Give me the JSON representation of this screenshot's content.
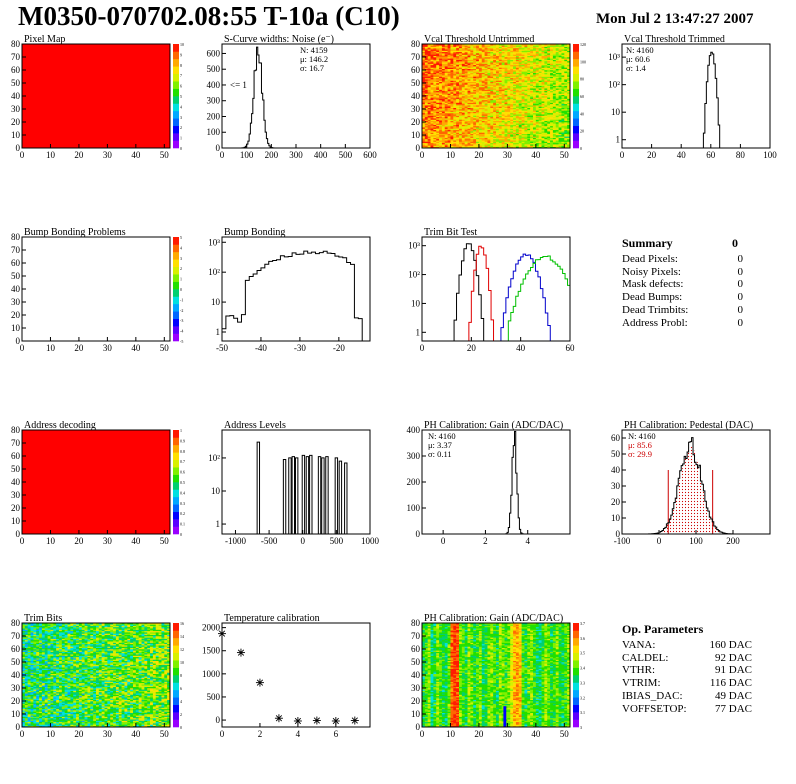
{
  "header": {
    "title": "M0350-070702.08:55 T-10a (C10)",
    "date": "Mon Jul  2 13:47:27 2007"
  },
  "colors": {
    "hist": "#000000",
    "trim_red": "#e00000",
    "trim_blue": "#0000cc",
    "trim_green": "#00c000",
    "ped_red": "#cc0000",
    "map_red": "#ff0000"
  },
  "chart_data": [
    {
      "id": "pixel_map",
      "type": "heatmap",
      "title": "Pixel Map",
      "pattern": "uniform_red",
      "xlim": [
        0,
        52
      ],
      "ylim": [
        0,
        80
      ],
      "xticks": [
        "0",
        "10",
        "20",
        "30",
        "40",
        "50"
      ],
      "yticks": [
        "0",
        "10",
        "20",
        "30",
        "40",
        "50",
        "60",
        "70",
        "80"
      ],
      "zticks": [
        "0",
        "1",
        "2",
        "3",
        "4",
        "5",
        "6",
        "7",
        "8",
        "9",
        "10"
      ]
    },
    {
      "id": "scurve",
      "type": "bar",
      "title": "S-Curve widths: Noise (e⁻)",
      "xlim": [
        0,
        600
      ],
      "ylim": [
        0,
        660
      ],
      "xticks": [
        "0",
        "100",
        "200",
        "300",
        "400",
        "500",
        "600"
      ],
      "yticks": [
        "0",
        "100",
        "200",
        "300",
        "400",
        "500",
        "600"
      ],
      "stats": [
        "N: 4159",
        "μ: 146.2",
        "σ: 16.7"
      ],
      "annotation": "<= 1",
      "peaks": [
        {
          "mean": 146,
          "sigma": 17,
          "height": 630
        }
      ]
    },
    {
      "id": "vcal_untrimmed",
      "type": "heatmap",
      "title": "Vcal Threshold Untrimmed",
      "pattern": "gradient_hot",
      "xlim": [
        0,
        52
      ],
      "ylim": [
        0,
        80
      ],
      "xticks": [
        "0",
        "10",
        "20",
        "30",
        "40",
        "50"
      ],
      "yticks": [
        "0",
        "10",
        "20",
        "30",
        "40",
        "50",
        "60",
        "70",
        "80"
      ],
      "zticks": [
        "0",
        "20",
        "40",
        "60",
        "80",
        "100",
        "120"
      ]
    },
    {
      "id": "vcal_trimmed",
      "type": "bar",
      "title": "Vcal Threshold Trimmed",
      "log": true,
      "xlim": [
        0,
        100
      ],
      "ylim": [
        0.5,
        3000
      ],
      "xticks": [
        "0",
        "20",
        "40",
        "60",
        "80",
        "100"
      ],
      "ytickvals": [
        1,
        10,
        100,
        1000
      ],
      "ylabels": [
        "1",
        "10",
        "10²",
        "10³"
      ],
      "stats": [
        "N: 4160",
        "μ: 60.6",
        "σ: 1.4"
      ],
      "peaks": [
        {
          "mean": 60.6,
          "sigma": 1.4,
          "height": 1500
        }
      ]
    },
    {
      "id": "bump_problems",
      "type": "heatmap",
      "title": "Bump Bonding Problems",
      "pattern": "empty",
      "xlim": [
        0,
        52
      ],
      "ylim": [
        0,
        80
      ],
      "xticks": [
        "0",
        "10",
        "20",
        "30",
        "40",
        "50"
      ],
      "yticks": [
        "0",
        "10",
        "20",
        "30",
        "40",
        "50",
        "60",
        "70",
        "80"
      ],
      "zticks": [
        "-5",
        "-4",
        "-3",
        "-2",
        "-1",
        "0",
        "1",
        "2",
        "3",
        "4",
        "5"
      ]
    },
    {
      "id": "bump_bonding",
      "type": "bar",
      "title": "Bump Bonding",
      "log": true,
      "xlim": [
        -50,
        -12
      ],
      "ylim": [
        0.5,
        1500
      ],
      "xticks": [
        "-50",
        "-40",
        "-30",
        "-20"
      ],
      "ytickvals": [
        1,
        10,
        100,
        1000
      ],
      "ylabels": [
        "1",
        "10",
        "10²",
        "10³"
      ],
      "peaks": [
        {
          "mean": -27,
          "sigma": 8,
          "height": 480
        }
      ]
    },
    {
      "id": "trim_bit_test",
      "type": "bar",
      "title": "Trim Bit Test",
      "log": true,
      "xlim": [
        0,
        60
      ],
      "ylim": [
        0.5,
        2000
      ],
      "xticks": [
        "0",
        "20",
        "40",
        "60"
      ],
      "ytickvals": [
        1,
        10,
        100,
        1000
      ],
      "ylabels": [
        "1",
        "10",
        "10²",
        "10³"
      ],
      "series": [
        {
          "color": "#000000",
          "peaks": [
            {
              "mean": 19,
              "sigma": 1.6,
              "height": 1100
            }
          ]
        },
        {
          "color": "#e00000",
          "peaks": [
            {
              "mean": 24,
              "sigma": 1.3,
              "height": 1000
            }
          ]
        },
        {
          "color": "#0000cc",
          "peaks": [
            {
              "mean": 42,
              "sigma": 2.8,
              "height": 520
            }
          ]
        },
        {
          "color": "#00c000",
          "peaks": [
            {
              "mean": 50,
              "sigma": 4.5,
              "height": 420
            }
          ]
        }
      ]
    },
    {
      "id": "address_decoding",
      "type": "heatmap",
      "title": "Address decoding",
      "pattern": "uniform_red",
      "xlim": [
        0,
        52
      ],
      "ylim": [
        0,
        80
      ],
      "xticks": [
        "0",
        "10",
        "20",
        "30",
        "40",
        "50"
      ],
      "yticks": [
        "0",
        "10",
        "20",
        "30",
        "40",
        "50",
        "60",
        "70",
        "80"
      ],
      "zticks": [
        "0",
        "0.1",
        "0.2",
        "0.3",
        "0.4",
        "0.5",
        "0.6",
        "0.7",
        "0.8",
        "0.9",
        "1"
      ]
    },
    {
      "id": "address_levels",
      "type": "bar",
      "title": "Address Levels",
      "log": true,
      "xlim": [
        -1200,
        1000
      ],
      "ylim": [
        0.5,
        700
      ],
      "xticks": [
        "-1000",
        "-500",
        "0",
        "500",
        "1000"
      ],
      "ytickvals": [
        1,
        10,
        100
      ],
      "ylabels": [
        "1",
        "10",
        "10²"
      ],
      "spikes": [
        [
          -660,
          300
        ],
        [
          -270,
          90
        ],
        [
          -190,
          100
        ],
        [
          -140,
          110
        ],
        [
          -90,
          100
        ],
        [
          10,
          120
        ],
        [
          70,
          110
        ],
        [
          120,
          120
        ],
        [
          250,
          110
        ],
        [
          300,
          100
        ],
        [
          360,
          110
        ],
        [
          500,
          100
        ],
        [
          560,
          80
        ],
        [
          640,
          70
        ]
      ]
    },
    {
      "id": "ph_gain",
      "type": "bar",
      "title": "PH Calibration: Gain (ADC/DAC)",
      "xlim": [
        -1,
        6
      ],
      "ylim": [
        0,
        400
      ],
      "xticks": [
        "0",
        "2",
        "4"
      ],
      "yticks": [
        "0",
        "100",
        "200",
        "300",
        "400"
      ],
      "stats": [
        "N: 4160",
        "μ: 3.37",
        "σ: 0.11"
      ],
      "peaks": [
        {
          "mean": 3.37,
          "sigma": 0.11,
          "height": 370
        }
      ]
    },
    {
      "id": "ph_pedestal",
      "type": "bar",
      "title": "PH Calibration: Pedestal (DAC)",
      "xlim": [
        -100,
        300
      ],
      "ylim": [
        0,
        65
      ],
      "xticks": [
        "-100",
        "0",
        "100",
        "200"
      ],
      "yticks": [
        "0",
        "10",
        "20",
        "30",
        "40",
        "50",
        "60"
      ],
      "stats": [
        "N: 4160",
        "μ: 85.6",
        "σ: 29.9"
      ],
      "peaks": [
        {
          "mean": 85.6,
          "sigma": 29.9,
          "height": 55
        }
      ],
      "cut_lines": [
        25,
        145
      ]
    },
    {
      "id": "trim_bits",
      "type": "heatmap",
      "title": "Trim Bits",
      "pattern": "mid_green",
      "xlim": [
        0,
        52
      ],
      "ylim": [
        0,
        80
      ],
      "xticks": [
        "0",
        "10",
        "20",
        "30",
        "40",
        "50"
      ],
      "yticks": [
        "0",
        "10",
        "20",
        "30",
        "40",
        "50",
        "60",
        "70",
        "80"
      ],
      "zticks": [
        "0",
        "2",
        "4",
        "6",
        "8",
        "10",
        "12",
        "14",
        "16"
      ]
    },
    {
      "id": "temp_cal",
      "type": "scatter",
      "title": "Temperature calibration",
      "xlim": [
        0,
        7.8
      ],
      "ylim": [
        -150,
        2100
      ],
      "xticks": [
        "0",
        "2",
        "4",
        "6"
      ],
      "yticks": [
        "0",
        "500",
        "1000",
        "1500",
        "2000"
      ],
      "x": [
        0,
        1,
        2,
        3,
        4,
        5,
        6,
        7
      ],
      "y": [
        1870,
        1460,
        810,
        40,
        -20,
        -10,
        -20,
        -10
      ]
    },
    {
      "id": "ph_gain_map",
      "type": "heatmap",
      "title": "PH Calibration: Gain (ADC/DAC)",
      "pattern": "column_stripes",
      "xlim": [
        0,
        52
      ],
      "ylim": [
        0,
        80
      ],
      "xticks": [
        "0",
        "10",
        "20",
        "30",
        "40",
        "50"
      ],
      "yticks": [
        "0",
        "10",
        "20",
        "30",
        "40",
        "50",
        "60",
        "70",
        "80"
      ],
      "zticks": [
        "3",
        "3.1",
        "3.2",
        "3.3",
        "3.4",
        "3.5",
        "3.6",
        "3.7"
      ]
    }
  ],
  "summary": {
    "title": "Summary",
    "total": "0",
    "rows": [
      {
        "label": "Dead Pixels:",
        "value": "0"
      },
      {
        "label": "Noisy Pixels:",
        "value": "0"
      },
      {
        "label": "Mask defects:",
        "value": "0"
      },
      {
        "label": "Dead Bumps:",
        "value": "0"
      },
      {
        "label": "Dead Trimbits:",
        "value": "0"
      },
      {
        "label": "Address Probl:",
        "value": "0"
      }
    ]
  },
  "op_params": {
    "title": "Op. Parameters",
    "rows": [
      {
        "label": "VANA:",
        "value": "160 DAC"
      },
      {
        "label": "CALDEL:",
        "value": "92 DAC"
      },
      {
        "label": "VTHR:",
        "value": "91 DAC"
      },
      {
        "label": "VTRIM:",
        "value": "116 DAC"
      },
      {
        "label": "IBIAS_DAC:",
        "value": "49 DAC"
      },
      {
        "label": "VOFFSETOP:",
        "value": "77 DAC"
      }
    ]
  }
}
